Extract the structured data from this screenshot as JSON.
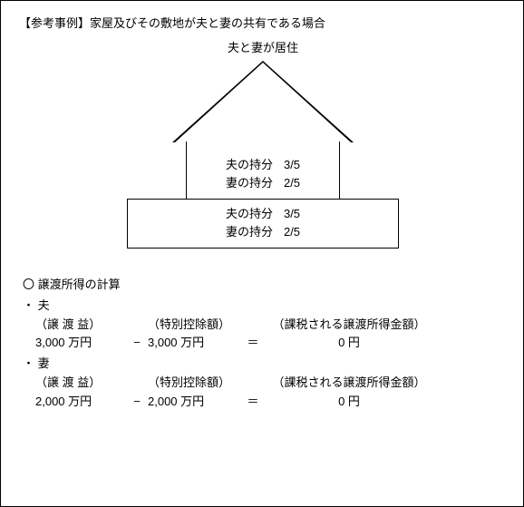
{
  "title": "【参考事例】家屋及びその敷地が夫と妻の共有である場合",
  "subtitle": "夫と妻が居住",
  "house": {
    "husband_label": "夫の持分",
    "husband_fraction": "3/5",
    "wife_label": "妻の持分",
    "wife_fraction": "2/5"
  },
  "land": {
    "husband_label": "夫の持分",
    "husband_fraction": "3/5",
    "wife_label": "妻の持分",
    "wife_fraction": "2/5"
  },
  "calc": {
    "heading": "〇  譲渡所得の計算",
    "label_gain": "（譲 渡 益）",
    "label_deduction": "（特別控除額）",
    "label_taxed": "（課税される譲渡所得金額）",
    "minus": "−",
    "equals": "＝",
    "husband": {
      "bullet": "・",
      "name": "夫",
      "gain": "3,000 万円",
      "deduction": "3,000 万円",
      "taxed": "0 円"
    },
    "wife": {
      "bullet": "・",
      "name": "妻",
      "gain": "2,000 万円",
      "deduction": "2,000 万円",
      "taxed": "0 円"
    }
  }
}
